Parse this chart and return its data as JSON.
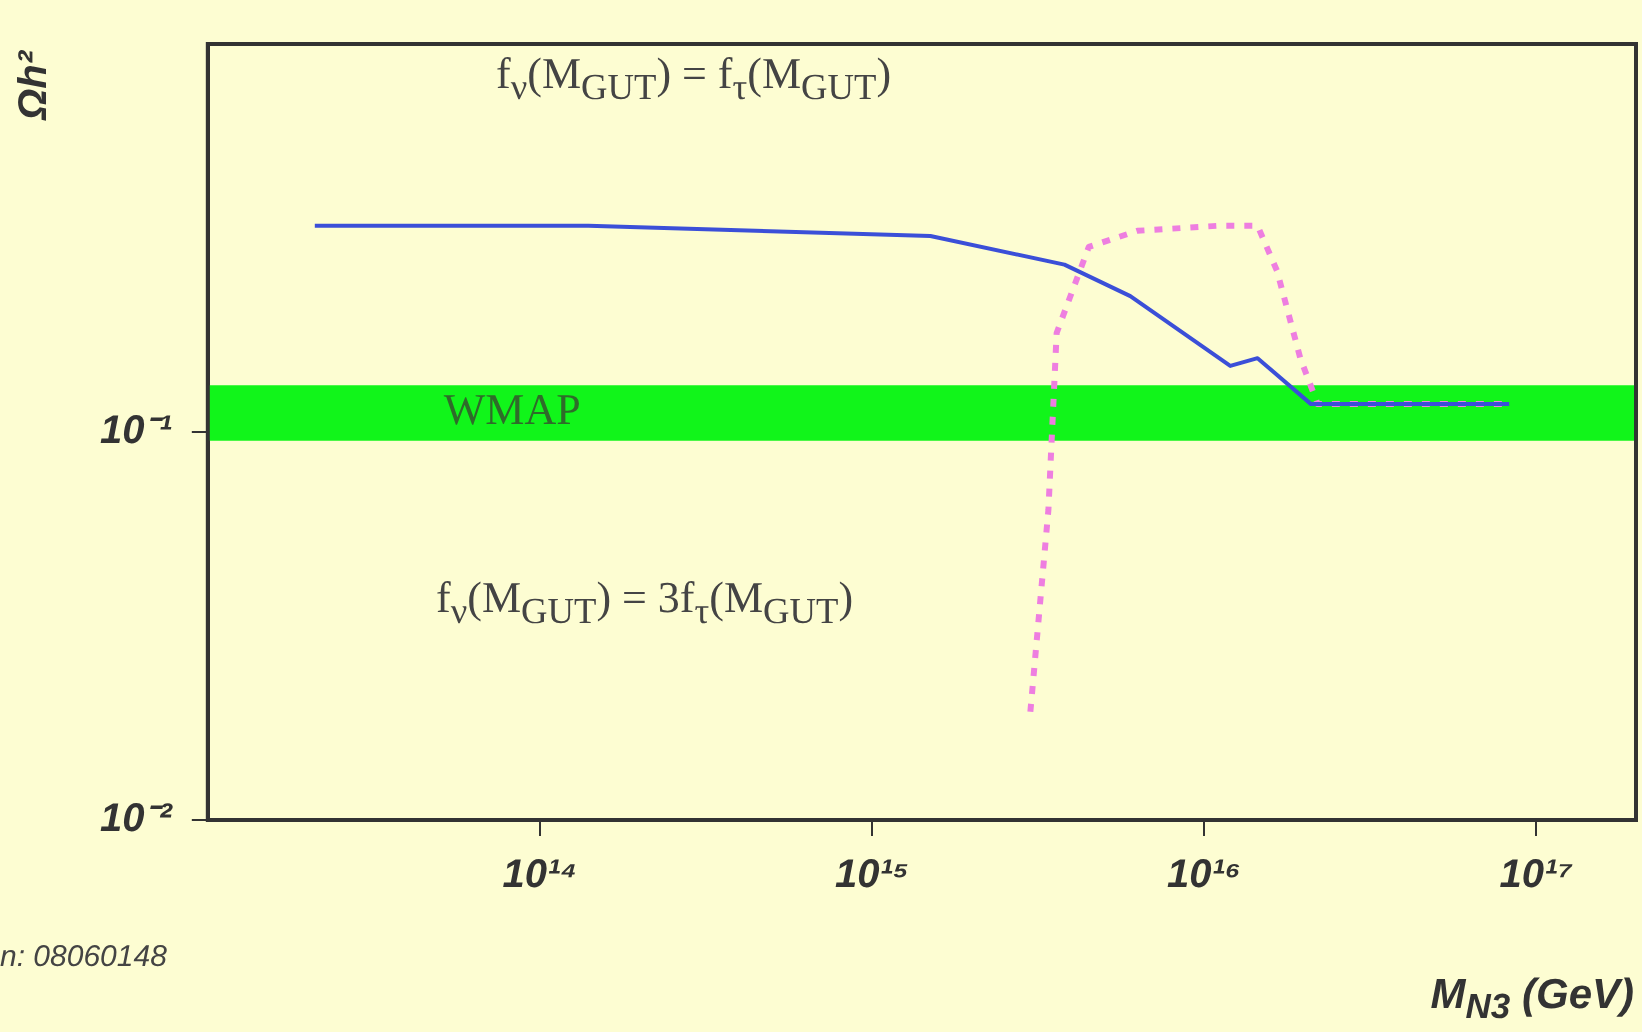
{
  "chart_data": {
    "type": "line",
    "xlabel": "M$_{N3}$ (GeV)",
    "ylabel": "Ωh²",
    "log": "xy",
    "xlim": [
      10000000000000.0,
      2e+17
    ],
    "ylim": [
      0.01,
      1
    ],
    "xticks": [
      {
        "value": 100000000000000.0,
        "label": "10¹⁴"
      },
      {
        "value": 1000000000000000.0,
        "label": "10¹⁵"
      },
      {
        "value": 1e+16,
        "label": "10¹⁶"
      },
      {
        "value": 1e+17,
        "label": "10¹⁷"
      }
    ],
    "yticks": [
      {
        "value": 0.01,
        "label": "10⁻²"
      },
      {
        "value": 0.1,
        "label": "10⁻¹"
      }
    ],
    "series": [
      {
        "color": "#3b4fd8",
        "line_style": "solid",
        "x": [
          21000000000000.0,
          140000000000000.0,
          1500000000000000.0,
          3800000000000000.0,
          6000000000000000.0,
          1.2e+16,
          1.45e+16,
          2.1e+16,
          8.3e+16
        ],
        "values": [
          0.34,
          0.34,
          0.32,
          0.27,
          0.224,
          0.148,
          0.155,
          0.118,
          0.118
        ]
      },
      {
        "color": "#ee7ee0",
        "line_style": "dotted",
        "x": [
          3000000000000000.0,
          3400000000000000.0,
          3600000000000000.0,
          4500000000000000.0,
          6300000000000000.0,
          1.1e+16,
          1.45e+16,
          1.66e+16,
          1.95e+16,
          2.2e+16,
          8.3e+16
        ],
        "values": [
          0.019,
          0.063,
          0.18,
          0.3,
          0.33,
          0.34,
          0.34,
          0.26,
          0.155,
          0.118,
          0.118
        ]
      }
    ],
    "bands": [
      {
        "axis": "y",
        "from": 0.095,
        "to": 0.132,
        "label": "WMAP",
        "color": "#11f51a"
      }
    ],
    "annotations": [
      "f$_{ν}$(M$_{GUT}$) = f$_{τ}$(M$_{GUT}$)",
      "f$_{ν}$(M$_{GUT}$) = 3f$_{τ}$(M$_{GUT}$)",
      "n: 08060148"
    ]
  }
}
